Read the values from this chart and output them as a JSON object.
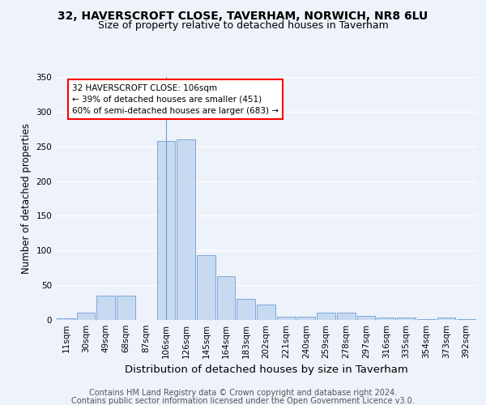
{
  "title1": "32, HAVERSCROFT CLOSE, TAVERHAM, NORWICH, NR8 6LU",
  "title2": "Size of property relative to detached houses in Taverham",
  "xlabel": "Distribution of detached houses by size in Taverham",
  "ylabel": "Number of detached properties",
  "categories": [
    "11sqm",
    "30sqm",
    "49sqm",
    "68sqm",
    "87sqm",
    "106sqm",
    "126sqm",
    "145sqm",
    "164sqm",
    "183sqm",
    "202sqm",
    "221sqm",
    "240sqm",
    "259sqm",
    "278sqm",
    "297sqm",
    "316sqm",
    "335sqm",
    "354sqm",
    "373sqm",
    "392sqm"
  ],
  "values": [
    2,
    10,
    35,
    35,
    0,
    258,
    260,
    93,
    63,
    30,
    22,
    5,
    5,
    10,
    10,
    6,
    3,
    3,
    1,
    3,
    1
  ],
  "highlight_index": 5,
  "bar_color": "#c8daf0",
  "bar_edge_color": "#6a9fd8",
  "annotation_box_text": "32 HAVERSCROFT CLOSE: 106sqm\n← 39% of detached houses are smaller (451)\n60% of semi-detached houses are larger (683) →",
  "annotation_box_color": "white",
  "annotation_box_edge_color": "red",
  "footer1": "Contains HM Land Registry data © Crown copyright and database right 2024.",
  "footer2": "Contains public sector information licensed under the Open Government Licence v3.0.",
  "ylim": [
    0,
    350
  ],
  "yticks": [
    0,
    50,
    100,
    150,
    200,
    250,
    300,
    350
  ],
  "bg_color": "#eef2fa",
  "grid_color": "white",
  "title1_fontsize": 10,
  "title2_fontsize": 9,
  "xlabel_fontsize": 9.5,
  "ylabel_fontsize": 8.5,
  "tick_fontsize": 7.5,
  "ann_fontsize": 7.5,
  "footer_fontsize": 7.0
}
